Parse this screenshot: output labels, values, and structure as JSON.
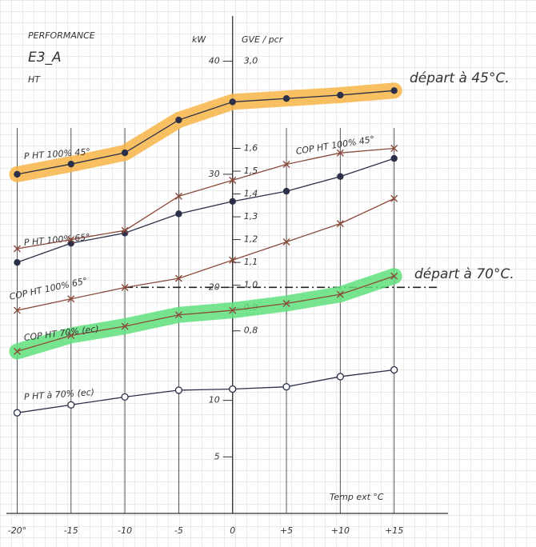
{
  "chart_data": {
    "type": "line",
    "notes": [
      "PERFORMANCE",
      "E3_A",
      "HT"
    ],
    "annotations": [
      "départ à 45°C.",
      "départ à 70°C."
    ],
    "ylabel": "kW",
    "y2label": "GVE / pcr",
    "y2_top_label": "3,0",
    "xlabel": "Temp ext °C",
    "xlim": [
      -21,
      20
    ],
    "xticks": [
      {
        "value": -20,
        "label": "-20°"
      },
      -15,
      -10,
      -5,
      0,
      {
        "value": 5,
        "label": "+5"
      },
      {
        "value": 10,
        "label": "+10"
      },
      {
        "value": 15,
        "label": "+15"
      }
    ],
    "ylim": [
      0,
      44
    ],
    "yticks": [
      5,
      10,
      20,
      30,
      40
    ],
    "y2lim": [
      0,
      2.18
    ],
    "y2ticks": [
      {
        "value": 0.8,
        "label": "0,8"
      },
      {
        "value": 0.9,
        "label": "0,9"
      },
      {
        "value": 1.0,
        "label": "1,0"
      },
      {
        "value": 1.1,
        "label": "1,1"
      },
      {
        "value": 1.2,
        "label": "1,2"
      },
      {
        "value": 1.3,
        "label": "1,3"
      },
      {
        "value": 1.4,
        "label": "1,4"
      },
      {
        "value": 1.5,
        "label": "1,5"
      },
      {
        "value": 1.6,
        "label": "1,6"
      }
    ],
    "hline": 20,
    "grid": true,
    "x": [
      -20,
      -15,
      -10,
      -5,
      0,
      5,
      10,
      15
    ],
    "series": [
      {
        "name": "P HT 100% 45°",
        "color": "#2b3048",
        "marker": "dot",
        "highlight": "#f8b548",
        "values": [
          30.0,
          30.9,
          31.9,
          34.8,
          36.4,
          36.7,
          37.0,
          37.4
        ]
      },
      {
        "name": "P HT 100% 65°",
        "color": "#2b3048",
        "marker": "dot",
        "values": [
          22.2,
          23.9,
          24.8,
          26.5,
          27.6,
          28.5,
          29.8,
          31.4
        ]
      },
      {
        "name": "P HT à 70% (ec)",
        "color": "#2b3048",
        "marker": "circle",
        "values": [
          8.9,
          9.6,
          10.3,
          10.9,
          11.0,
          11.2,
          12.1,
          12.7
        ]
      },
      {
        "name": "COP HT 100% 45°",
        "color": "#8a4a3a",
        "marker": "cross",
        "axis": "y2",
        "values": [
          1.16,
          1.2,
          1.24,
          1.39,
          1.46,
          1.53,
          1.58,
          1.6
        ]
      },
      {
        "name": "COP HT 100% 65°",
        "color": "#8a4a3a",
        "marker": "cross",
        "axis": "y2",
        "values": [
          0.89,
          0.94,
          0.99,
          1.03,
          1.11,
          1.19,
          1.27,
          1.38
        ]
      },
      {
        "name": "COP HT 70% (ec)",
        "color": "#8a4a3a",
        "marker": "cross",
        "axis": "y2",
        "highlight": "#5fe07c",
        "values": [
          0.71,
          0.78,
          0.82,
          0.87,
          0.89,
          0.92,
          0.96,
          1.04
        ]
      }
    ]
  }
}
